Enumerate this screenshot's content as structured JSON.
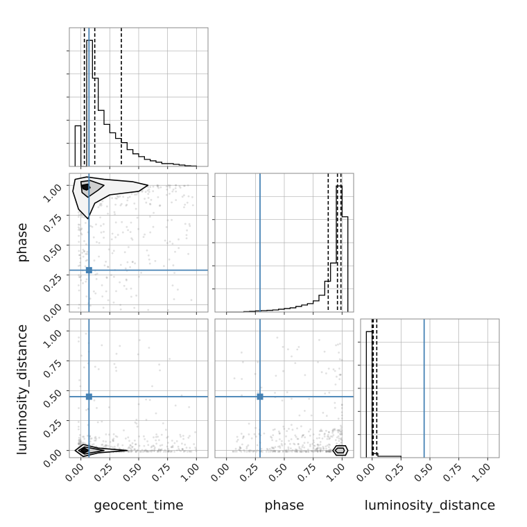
{
  "chart_data": {
    "type": "corner",
    "parameters": [
      "geocent_time",
      "phase",
      "luminosity_distance"
    ],
    "axis_labels": {
      "geocent_time": "geocent_time",
      "phase": "phase",
      "luminosity_distance": "luminosity_distance"
    },
    "tick_values": [
      0.0,
      0.25,
      0.5,
      0.75,
      1.0
    ],
    "tick_labels": [
      "0.00",
      "0.25",
      "0.50",
      "0.75",
      "1.00"
    ],
    "xlim": {
      "geocent_time": [
        -0.1,
        1.1
      ],
      "phase": [
        -0.1,
        1.1
      ],
      "luminosity_distance": [
        -0.1,
        1.1
      ]
    },
    "ylim_2d": {
      "phase": [
        -0.06,
        1.1
      ],
      "luminosity_distance": [
        -0.06,
        1.1
      ]
    },
    "injection": {
      "geocent_time": 0.07,
      "phase": 0.29,
      "luminosity_distance": 0.45
    },
    "colors": {
      "truth": "#4682b4",
      "histogram": "#000000",
      "grid": "#b0b0b0",
      "samples": "#888888"
    },
    "grid": true,
    "histograms": {
      "geocent_time": {
        "bin_edges": [
          -0.05,
          0.0,
          0.05,
          0.1,
          0.15,
          0.2,
          0.25,
          0.3,
          0.35,
          0.4,
          0.45,
          0.5,
          0.55,
          0.6,
          0.65,
          0.7,
          0.75,
          0.8,
          0.85,
          0.9,
          0.95,
          1.0
        ],
        "counts": [
          0.29,
          0.0,
          0.9,
          0.63,
          0.4,
          0.3,
          0.24,
          0.2,
          0.17,
          0.12,
          0.09,
          0.07,
          0.05,
          0.04,
          0.03,
          0.02,
          0.02,
          0.015,
          0.01,
          0.005,
          0.003
        ],
        "quantiles": [
          0.03,
          0.12,
          0.35
        ]
      },
      "phase": {
        "bin_edges": [
          0.0,
          0.05,
          0.1,
          0.15,
          0.2,
          0.25,
          0.3,
          0.35,
          0.4,
          0.45,
          0.5,
          0.55,
          0.6,
          0.65,
          0.7,
          0.75,
          0.8,
          0.85,
          0.9,
          0.95,
          1.0,
          1.05
        ],
        "counts": [
          0.0,
          0.0,
          0.0,
          0.003,
          0.005,
          0.008,
          0.01,
          0.012,
          0.015,
          0.02,
          0.025,
          0.03,
          0.04,
          0.05,
          0.06,
          0.08,
          0.12,
          0.22,
          0.35,
          0.9,
          0.68
        ],
        "quantiles": [
          0.88,
          0.96,
          0.99
        ]
      },
      "luminosity_distance": {
        "bin_edges": [
          -0.05,
          0.0,
          0.05,
          0.1,
          0.15,
          0.2,
          0.25
        ],
        "counts": [
          0.92,
          0.03,
          0.01,
          0.01,
          0.01,
          0.01
        ],
        "quantiles": [
          0.0,
          0.01,
          0.04
        ]
      }
    },
    "contours": {
      "phase_vs_geocent_time": [
        [
          [
            -0.05,
            1.05
          ],
          [
            0.05,
            1.07
          ],
          [
            0.2,
            1.05
          ],
          [
            0.45,
            1.03
          ],
          [
            0.58,
            1.0
          ],
          [
            0.5,
            0.95
          ],
          [
            0.25,
            0.92
          ],
          [
            0.12,
            0.85
          ],
          [
            0.06,
            0.72
          ],
          [
            -0.02,
            0.8
          ],
          [
            -0.07,
            0.95
          ]
        ],
        [
          [
            0.0,
            1.03
          ],
          [
            0.08,
            1.04
          ],
          [
            0.2,
            1.0
          ],
          [
            0.15,
            0.96
          ],
          [
            0.06,
            0.9
          ],
          [
            0.01,
            0.94
          ]
        ],
        [
          [
            0.01,
            1.0
          ],
          [
            0.06,
            1.01
          ],
          [
            0.08,
            0.98
          ],
          [
            0.05,
            0.96
          ],
          [
            0.02,
            0.97
          ]
        ]
      ],
      "luminosity_distance_vs_geocent_time": [
        [
          [
            -0.05,
            0.0
          ],
          [
            0.02,
            0.05
          ],
          [
            0.15,
            0.02
          ],
          [
            0.4,
            0.0
          ],
          [
            0.15,
            -0.02
          ],
          [
            0.02,
            -0.05
          ]
        ],
        [
          [
            -0.02,
            0.0
          ],
          [
            0.03,
            0.03
          ],
          [
            0.2,
            0.0
          ],
          [
            0.03,
            -0.03
          ]
        ],
        [
          [
            0.0,
            0.0
          ],
          [
            0.03,
            0.02
          ],
          [
            0.07,
            0.0
          ],
          [
            0.03,
            -0.02
          ]
        ]
      ],
      "luminosity_distance_vs_phase": [
        [
          [
            0.92,
            0.0
          ],
          [
            0.95,
            0.04
          ],
          [
            1.03,
            0.04
          ],
          [
            1.05,
            0.0
          ],
          [
            1.03,
            -0.04
          ],
          [
            0.95,
            -0.04
          ]
        ],
        [
          [
            0.94,
            0.0
          ],
          [
            0.96,
            0.02
          ],
          [
            1.01,
            0.02
          ],
          [
            1.02,
            0.0
          ],
          [
            1.01,
            -0.02
          ],
          [
            0.96,
            -0.02
          ]
        ]
      ]
    }
  }
}
